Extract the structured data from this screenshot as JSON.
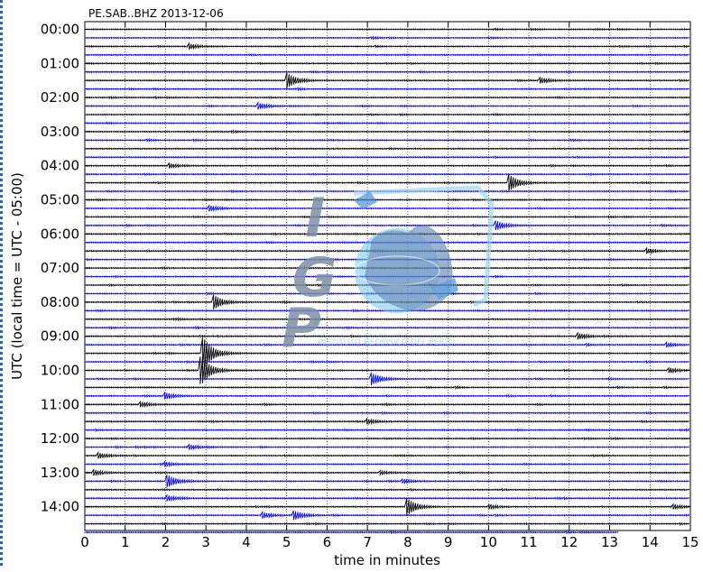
{
  "chart_data": {
    "type": "line",
    "title": "PE.SAB..BHZ 2013-12-06",
    "xlabel": "time in minutes",
    "ylabel": "UTC (local time = UTC - 05:00)",
    "xlim": [
      0,
      15
    ],
    "x_ticks": [
      "0",
      "1",
      "2",
      "3",
      "4",
      "5",
      "6",
      "7",
      "8",
      "9",
      "10",
      "11",
      "12",
      "13",
      "14",
      "15"
    ],
    "y_ticks": [
      "00:00",
      "01:00",
      "02:00",
      "03:00",
      "04:00",
      "05:00",
      "06:00",
      "07:00",
      "08:00",
      "09:00",
      "10:00",
      "11:00",
      "12:00",
      "13:00",
      "14:00"
    ],
    "trace_interval_minutes": 15,
    "trace_count": 60,
    "last_trace_end_minute": 13.2,
    "colors": [
      "#000000",
      "#0000ff"
    ],
    "grid": true,
    "events": [
      {
        "trace": 2,
        "minute": 2.6,
        "amplitude": 0.5
      },
      {
        "trace": 6,
        "minute": 5.0,
        "amplitude": 1.8
      },
      {
        "trace": 6,
        "minute": 11.3,
        "amplitude": 0.6
      },
      {
        "trace": 9,
        "minute": 4.3,
        "amplitude": 0.7
      },
      {
        "trace": 16,
        "minute": 2.1,
        "amplitude": 0.5
      },
      {
        "trace": 18,
        "minute": 10.5,
        "amplitude": 2.0
      },
      {
        "trace": 21,
        "minute": 3.1,
        "amplitude": 0.6
      },
      {
        "trace": 23,
        "minute": 10.2,
        "amplitude": 1.0
      },
      {
        "trace": 26,
        "minute": 13.9,
        "amplitude": 0.6
      },
      {
        "trace": 32,
        "minute": 3.2,
        "amplitude": 1.6
      },
      {
        "trace": 36,
        "minute": 12.2,
        "amplitude": 0.7
      },
      {
        "trace": 37,
        "minute": 14.4,
        "amplitude": 0.5
      },
      {
        "trace": 38,
        "minute": 2.95,
        "amplitude": 3.5
      },
      {
        "trace": 40,
        "minute": 2.9,
        "amplitude": 3.0
      },
      {
        "trace": 40,
        "minute": 14.5,
        "amplitude": 0.5
      },
      {
        "trace": 41,
        "minute": 7.1,
        "amplitude": 1.4
      },
      {
        "trace": 43,
        "minute": 2.0,
        "amplitude": 0.7
      },
      {
        "trace": 44,
        "minute": 1.4,
        "amplitude": 0.5
      },
      {
        "trace": 46,
        "minute": 7.0,
        "amplitude": 0.5
      },
      {
        "trace": 49,
        "minute": 2.6,
        "amplitude": 0.5
      },
      {
        "trace": 50,
        "minute": 0.35,
        "amplitude": 0.6
      },
      {
        "trace": 51,
        "minute": 2.0,
        "amplitude": 0.4
      },
      {
        "trace": 52,
        "minute": 0.25,
        "amplitude": 0.6
      },
      {
        "trace": 52,
        "minute": 7.3,
        "amplitude": 0.4
      },
      {
        "trace": 53,
        "minute": 2.05,
        "amplitude": 1.4
      },
      {
        "trace": 53,
        "minute": 7.9,
        "amplitude": 0.4
      },
      {
        "trace": 55,
        "minute": 2.05,
        "amplitude": 0.5
      },
      {
        "trace": 56,
        "minute": 8.0,
        "amplitude": 1.8
      },
      {
        "trace": 56,
        "minute": 10.0,
        "amplitude": 0.4
      },
      {
        "trace": 56,
        "minute": 14.6,
        "amplitude": 0.5
      },
      {
        "trace": 57,
        "minute": 4.4,
        "amplitude": 0.7
      },
      {
        "trace": 57,
        "minute": 5.2,
        "amplitude": 1.0
      }
    ]
  },
  "watermark": {
    "icon": "igp-globe-logo",
    "letters": [
      "I",
      "G",
      "P"
    ],
    "caption": "INSTITUTO GEOFÍSICO DEL PERÚ",
    "colors": [
      "#7f8fa6",
      "#78c6ee",
      "#4a90d9"
    ]
  }
}
